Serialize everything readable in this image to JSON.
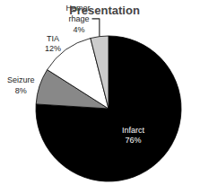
{
  "chart_data": {
    "type": "pie",
    "title": "Presentation",
    "categories": [
      "Infarct\n76%",
      "Seizure\n8%",
      "TIA\n12%",
      "Hemor.\nrhage\n4%"
    ],
    "values": [
      76,
      8,
      12,
      4
    ],
    "colors": [
      "#000000",
      "#888888",
      "#ffffff",
      "#cccccc"
    ]
  }
}
